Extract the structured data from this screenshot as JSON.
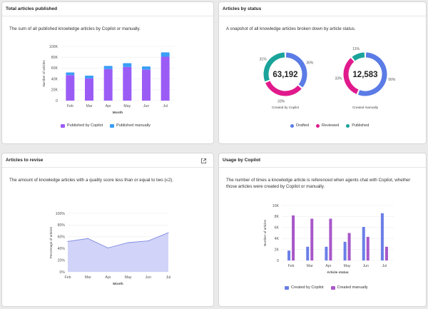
{
  "colors": {
    "published_by_copilot": "#9b5cf6",
    "published_manually": "#3b9ef5",
    "drafted": "#5b7be6",
    "reviewed": "#e01a8c",
    "published": "#1aa39a",
    "area_fill": "#c9cdf7",
    "area_line": "#7f8ae0",
    "created_by_copilot": "#6b7ee8",
    "created_manually": "#a857c9"
  },
  "cards": {
    "total_articles": {
      "title": "Total articles published",
      "description": "The sum of all published knowledge articles by Copilot or manually."
    },
    "articles_by_status": {
      "title": "Articles by status",
      "description": "A snapshot of all knowledge articles broken down by article status."
    },
    "articles_to_revise": {
      "title": "Articles to revise",
      "description": "The amount of knowledge articles with a quality score less than or equal to two (≤2)."
    },
    "usage_by_copilot": {
      "title": "Usage by Copilot",
      "description": "The number of times a knowledge article is referenced when agents chat with Copilot, whether those articles were created by Copilot or manually."
    }
  },
  "chart_data": [
    {
      "id": "total_articles_published",
      "type": "bar",
      "stacked": true,
      "categories": [
        "Feb",
        "Mar",
        "Apr",
        "May",
        "Jun",
        "Jul"
      ],
      "series": [
        {
          "name": "Published by Copilot",
          "values": [
            47000,
            41000,
            58000,
            62000,
            57000,
            81000
          ]
        },
        {
          "name": "Published manually",
          "values": [
            5000,
            5000,
            6000,
            7000,
            6000,
            8000
          ]
        }
      ],
      "xlabel": "Month",
      "ylabel": "Number of articles",
      "ylim": [
        0,
        100000
      ],
      "yticks": [
        "0",
        "20K",
        "40K",
        "60K",
        "80K",
        "100K"
      ],
      "grid": true,
      "legend": "bottom"
    },
    {
      "id": "articles_by_status",
      "type": "pie",
      "donut": true,
      "legend_labels": [
        "Drafted",
        "Reviewed",
        "Published"
      ],
      "legend": "bottom",
      "donuts": [
        {
          "center_value": "63,192",
          "caption": "Created by Copilot",
          "slices": [
            {
              "name": "Drafted",
              "value": 36,
              "label": "36%"
            },
            {
              "name": "Reviewed",
              "value": 33,
              "label": "33%"
            },
            {
              "name": "Published",
              "value": 31,
              "label": "31%"
            }
          ]
        },
        {
          "center_value": "12,583",
          "caption": "Created manually",
          "slices": [
            {
              "name": "Drafted",
              "value": 56,
              "label": "56%"
            },
            {
              "name": "Reviewed",
              "value": 33,
              "label": "33%"
            },
            {
              "name": "Published",
              "value": 11,
              "label": "11%"
            }
          ]
        }
      ]
    },
    {
      "id": "articles_to_revise",
      "type": "area",
      "categories": [
        "Feb",
        "Mar",
        "Apr",
        "May",
        "Jun",
        "Jul"
      ],
      "values": [
        52,
        57,
        41,
        50,
        53,
        67
      ],
      "xlabel": "Month",
      "ylabel": "Percentage of articles",
      "ylim": [
        0,
        100
      ],
      "yticks": [
        "0%",
        "20%",
        "40%",
        "60%",
        "80%",
        "100%"
      ],
      "grid": true
    },
    {
      "id": "usage_by_copilot",
      "type": "bar",
      "grouped": true,
      "categories": [
        "Feb",
        "Mar",
        "Apr",
        "May",
        "Jun",
        "Jul"
      ],
      "series": [
        {
          "name": "Created by Copilot",
          "values": [
            1800,
            2500,
            2500,
            3400,
            6100,
            8600
          ]
        },
        {
          "name": "Created manually",
          "values": [
            8200,
            7600,
            7600,
            5000,
            4300,
            2500
          ]
        }
      ],
      "xlabel": "Article status",
      "ylabel": "Number of articles",
      "ylim": [
        0,
        10000
      ],
      "yticks": [
        "0",
        "2K",
        "4K",
        "6K",
        "8K",
        "10K"
      ],
      "grid": true,
      "legend": "bottom"
    }
  ]
}
